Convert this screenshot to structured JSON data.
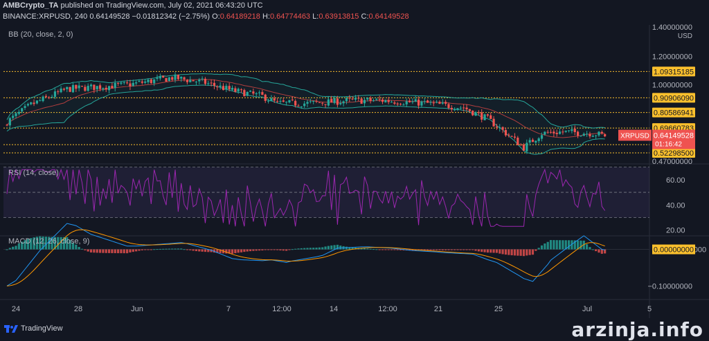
{
  "header": {
    "author": "AMBCrypto_TA",
    "published": "published on TradingView.com, July 02, 2021 06:43:20 UTC",
    "symbol": "BINANCE:XRPUSD, 240",
    "last": "0.64149528",
    "change": "−0.01812342 (−2.75%)",
    "o_label": "O:",
    "o": "0.64189218",
    "h_label": "H:",
    "h": "0.64774463",
    "l_label": "L:",
    "l": "0.63913815",
    "c_label": "C:",
    "c": "0.64149528"
  },
  "panes": {
    "bb_label": "BB (20, close, 2, 0)",
    "rsi_label": "RSI (14, close)",
    "macd_label": "MACD (12, 26, close, 9)"
  },
  "price_axis": {
    "currency": "USD",
    "ticks": [
      "1.40000000",
      "1.20000000",
      "1.00000000",
      "0.47000000"
    ],
    "hlines": [
      {
        "label": "1.09315185",
        "value": 1.09315185
      },
      {
        "label": "0.90906090",
        "value": 0.9090609
      },
      {
        "label": "0.80586941",
        "value": 0.80586941
      },
      {
        "label": "0.69660783",
        "value": 0.69660783
      },
      {
        "label": "0.58016674",
        "value": 0.58016674
      },
      {
        "label": "0.52298500",
        "value": 0.522985
      }
    ],
    "current": {
      "symbol": "XRPUSD",
      "price": "0.64149528",
      "countdown": "01:16:42",
      "value": 0.64149528
    }
  },
  "rsi_axis": {
    "ticks": [
      "60.00",
      "40.00",
      "20.00"
    ]
  },
  "macd_axis": {
    "ticks": [
      "0.00000000",
      "−0.10000000"
    ]
  },
  "time_axis": {
    "ticks": [
      "24",
      "28",
      "Jun",
      "7",
      "12:00",
      "14",
      "12:00",
      "21",
      "25",
      "Jul",
      "5"
    ]
  },
  "footer": {
    "brand": "TradingView",
    "watermark": "arzinja.info"
  },
  "colors": {
    "up": "#26a69a",
    "down": "#ef5350",
    "bb": "#26a69a",
    "rsi": "#9c27b0",
    "macd": "#2196f3",
    "signal": "#ff9800",
    "hline": "#fbc02d"
  },
  "chart_data": {
    "type": "candlestick",
    "symbol": "XRPUSD",
    "interval": "240",
    "close_path": [
      {
        "x": "24",
        "y": 0.74
      },
      {
        "x": "28",
        "y": 0.99
      },
      {
        "x": "Jun",
        "y": 1.02
      },
      {
        "x": "7",
        "y": 0.93
      },
      {
        "x": "12:00",
        "y": 0.86
      },
      {
        "x": "14",
        "y": 0.89
      },
      {
        "x": "12:00",
        "y": 0.85
      },
      {
        "x": "21",
        "y": 0.73
      },
      {
        "x": "25",
        "y": 0.63
      },
      {
        "x": "Jul",
        "y": 0.67
      },
      {
        "x": "5",
        "y": 0.64
      }
    ],
    "rsi_range": [
      20,
      70
    ],
    "macd_range": [
      -0.12,
      0.03
    ]
  }
}
